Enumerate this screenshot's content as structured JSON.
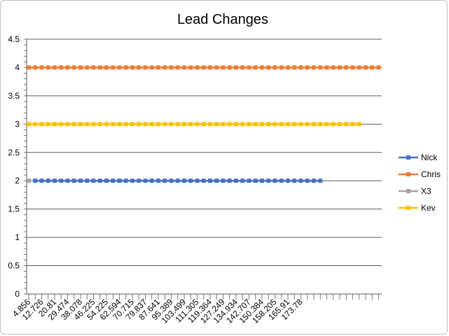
{
  "chart_data": {
    "type": "line",
    "title": "Lead Changes",
    "xlabel": "",
    "ylabel": "",
    "ylim": [
      0,
      4.5
    ],
    "y_ticks": [
      "0",
      "0.5",
      "1",
      "1.5",
      "2",
      "2.5",
      "3",
      "3.5",
      "4",
      "4.5"
    ],
    "x_tick_labels": [
      "4.856",
      "12.726",
      "20.81",
      "29.474",
      "38.078",
      "46.225",
      "54.225",
      "62.594",
      "70.715",
      "79.837",
      "87.641",
      "95.389",
      "103.499",
      "111.305",
      "119.364",
      "127.249",
      "134.934",
      "142.707",
      "150.384",
      "158.205",
      "165.91",
      "173.78"
    ],
    "grid": "horizontal",
    "legend_position": "right",
    "series": [
      {
        "name": "Nick",
        "color": "#4472c4",
        "value": 2,
        "first_point": 1,
        "point_count": 45
      },
      {
        "name": "Chris",
        "color": "#ed7d31",
        "value": 4,
        "first_point": 0,
        "point_count": 55
      },
      {
        "name": "X3",
        "color": "#a5a5a5",
        "value": 2,
        "first_point": 0,
        "point_count": 1
      },
      {
        "name": "Kev",
        "color": "#ffc000",
        "value": 3,
        "first_point": 0,
        "point_count": 52
      }
    ]
  }
}
